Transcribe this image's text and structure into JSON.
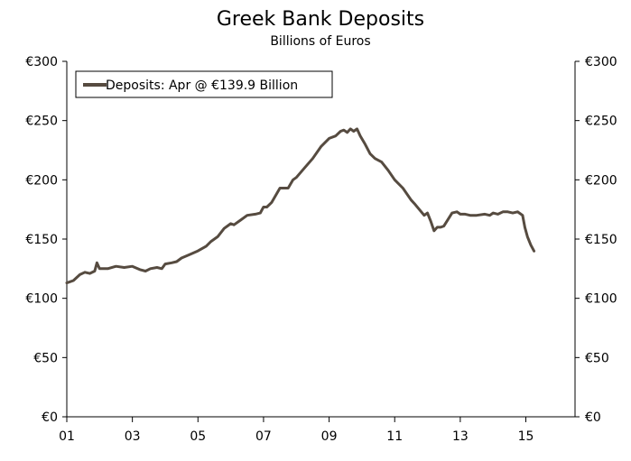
{
  "chart_data": {
    "type": "line",
    "title": "Greek Bank Deposits",
    "subtitle": "Billions of Euros",
    "xlabel": "",
    "ylabel": "",
    "x_tick_labels": [
      "01",
      "03",
      "05",
      "07",
      "09",
      "11",
      "13",
      "15"
    ],
    "x_tick_values": [
      2001,
      2003,
      2005,
      2007,
      2009,
      2011,
      2013,
      2015
    ],
    "xlim": [
      2001.0,
      2016.5
    ],
    "y_tick_labels": [
      "€0",
      "€50",
      "€100",
      "€150",
      "€200",
      "€250",
      "€300"
    ],
    "y_tick_values": [
      0,
      50,
      100,
      150,
      200,
      250,
      300
    ],
    "ylim": [
      0,
      300
    ],
    "right_axis_ticks_mirrored": true,
    "grid": false,
    "legend_position": "top-left",
    "series": [
      {
        "name": "Deposits: Apr @ €139.9 Billion",
        "color": "#564b40",
        "x": [
          2001.0,
          2001.2,
          2001.4,
          2001.55,
          2001.7,
          2001.85,
          2001.92,
          2002.0,
          2002.25,
          2002.5,
          2002.75,
          2003.0,
          2003.25,
          2003.4,
          2003.55,
          2003.75,
          2003.9,
          2004.0,
          2004.2,
          2004.35,
          2004.5,
          2004.75,
          2005.0,
          2005.25,
          2005.4,
          2005.6,
          2005.8,
          2006.0,
          2006.1,
          2006.3,
          2006.5,
          2006.75,
          2006.9,
          2007.0,
          2007.1,
          2007.25,
          2007.5,
          2007.75,
          2007.9,
          2008.0,
          2008.25,
          2008.5,
          2008.75,
          2009.0,
          2009.2,
          2009.35,
          2009.45,
          2009.55,
          2009.65,
          2009.75,
          2009.85,
          2009.95,
          2010.1,
          2010.25,
          2010.4,
          2010.6,
          2010.8,
          2011.0,
          2011.25,
          2011.5,
          2011.6,
          2011.75,
          2011.9,
          2012.0,
          2012.1,
          2012.2,
          2012.3,
          2012.4,
          2012.5,
          2012.75,
          2012.9,
          2013.0,
          2013.15,
          2013.3,
          2013.5,
          2013.75,
          2013.9,
          2014.0,
          2014.15,
          2014.3,
          2014.45,
          2014.6,
          2014.75,
          2014.8,
          2014.9,
          2014.97,
          2015.05,
          2015.15,
          2015.25
        ],
        "y": [
          113,
          115,
          120,
          122,
          121,
          123,
          130,
          125,
          125,
          127,
          126,
          127,
          124,
          123,
          125,
          126,
          125,
          129,
          130,
          131,
          134,
          137,
          140,
          144,
          148,
          152,
          159,
          163,
          162,
          166,
          170,
          171,
          172,
          177,
          177,
          181,
          193,
          193,
          200,
          202,
          210,
          218,
          228,
          235,
          237,
          241,
          242,
          240,
          243,
          241,
          243,
          237,
          230,
          222,
          218,
          215,
          208,
          200,
          193,
          183,
          180,
          175,
          170,
          172,
          165,
          157,
          160,
          160,
          161,
          172,
          173,
          171,
          171,
          170,
          170,
          171,
          170,
          172,
          171,
          173,
          173,
          172,
          173,
          172,
          170,
          160,
          152,
          145,
          139.9
        ]
      }
    ]
  }
}
